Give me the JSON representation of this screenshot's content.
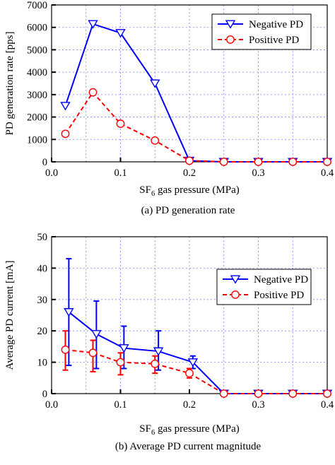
{
  "chart_data": [
    {
      "type": "line",
      "caption": "(a) PD generation rate",
      "ylabel": "PD generation rate [pps]",
      "xlabel_parts": [
        "SF",
        "6",
        " gas pressure (MPa)"
      ],
      "xlim": [
        0.0,
        0.4
      ],
      "ylim": [
        0,
        7000
      ],
      "x_ticks": [
        "0.0",
        "0.1",
        "0.2",
        "0.3",
        "0.4"
      ],
      "y_ticks": [
        "0",
        "1000",
        "2000",
        "3000",
        "4000",
        "5000",
        "6000",
        "7000"
      ],
      "grid": true,
      "legend_position": "top-right",
      "series": [
        {
          "name": "Negative PD",
          "color": "#0000ff",
          "line_style": "solid",
          "marker": "triangle-down",
          "x": [
            0.02,
            0.06,
            0.1,
            0.15,
            0.2,
            0.25,
            0.3,
            0.35,
            0.4
          ],
          "y": [
            2500,
            6150,
            5750,
            3500,
            50,
            0,
            0,
            0,
            0
          ]
        },
        {
          "name": "Positive PD",
          "color": "#ff0000",
          "line_style": "dashed",
          "marker": "circle",
          "x": [
            0.02,
            0.06,
            0.1,
            0.15,
            0.2,
            0.25,
            0.3,
            0.35,
            0.4
          ],
          "y": [
            1250,
            3100,
            1700,
            950,
            50,
            0,
            0,
            0,
            0
          ]
        }
      ]
    },
    {
      "type": "line",
      "caption": "(b) Average PD current magnitude",
      "ylabel": "Average PD current [mA]",
      "xlabel_parts": [
        "SF",
        "6",
        " gas pressure (MPa)"
      ],
      "xlim": [
        0.0,
        0.4
      ],
      "ylim": [
        0,
        50
      ],
      "x_ticks": [
        "0.0",
        "0.1",
        "0.2",
        "0.3",
        "0.4"
      ],
      "y_ticks": [
        "0",
        "10",
        "20",
        "30",
        "40",
        "50"
      ],
      "grid": true,
      "legend_position": "top-right",
      "series": [
        {
          "name": "Negative PD",
          "color": "#0000ff",
          "line_style": "solid",
          "marker": "triangle-down",
          "x": [
            0.025,
            0.065,
            0.105,
            0.155,
            0.205,
            0.25,
            0.3,
            0.35,
            0.4
          ],
          "y": [
            26,
            19,
            14.5,
            13.5,
            10,
            0,
            0,
            0,
            0
          ],
          "err_low": [
            9,
            8,
            8,
            7.5,
            8,
            0,
            0,
            0,
            0
          ],
          "err_high": [
            43,
            29.5,
            21.5,
            20,
            12,
            0,
            0,
            0,
            0
          ]
        },
        {
          "name": "Positive PD",
          "color": "#ff0000",
          "line_style": "dashed",
          "marker": "circle",
          "x": [
            0.02,
            0.06,
            0.1,
            0.15,
            0.2,
            0.25,
            0.3,
            0.35,
            0.4
          ],
          "y": [
            14,
            13,
            10,
            9.5,
            6.5,
            0,
            0,
            0,
            0
          ],
          "err_low": [
            7.5,
            7,
            6,
            6.5,
            5,
            0,
            0,
            0,
            0
          ],
          "err_high": [
            20,
            17,
            13,
            12,
            8,
            0,
            0,
            0,
            0
          ]
        }
      ]
    }
  ]
}
